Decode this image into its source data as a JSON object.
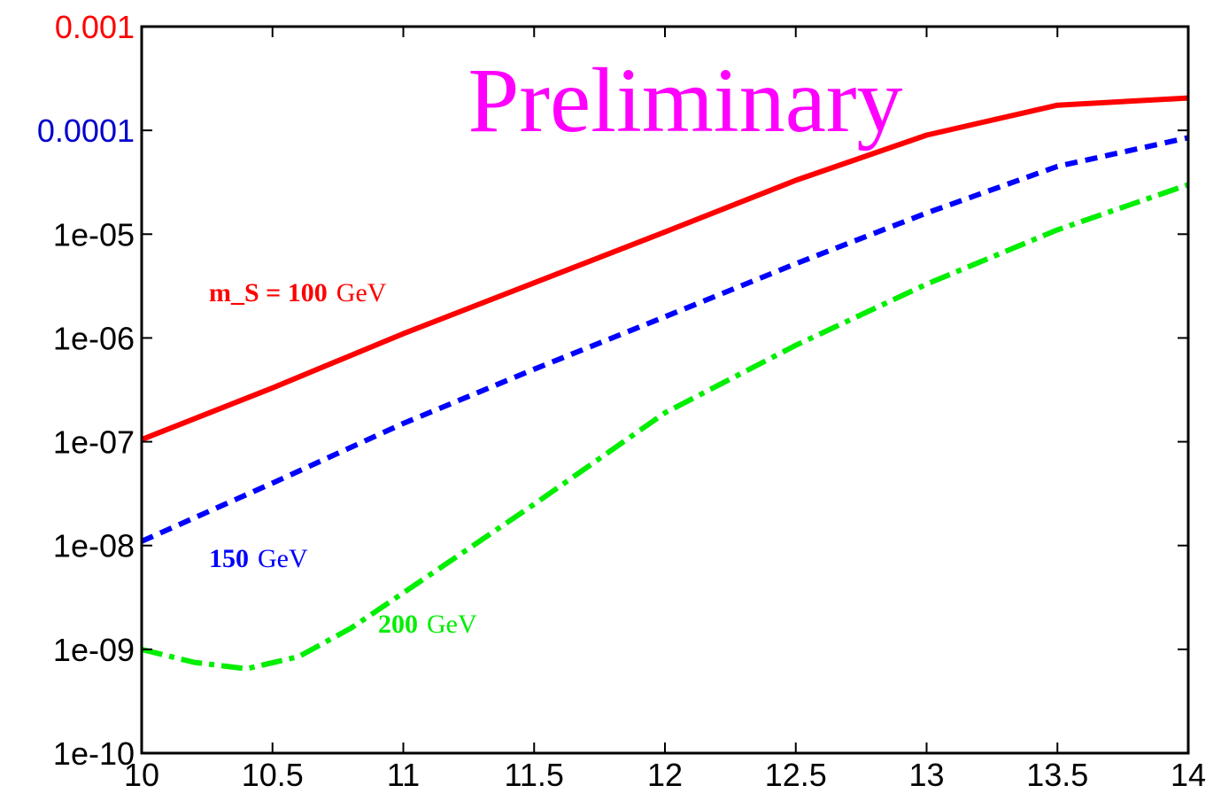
{
  "chart_data": {
    "type": "line",
    "title": "",
    "xlabel": "",
    "ylabel": "",
    "watermark": "Preliminary",
    "watermark_color": "#ff00ff",
    "xlim": [
      10,
      14
    ],
    "ylim": [
      1e-10,
      0.001
    ],
    "yscale": "log",
    "grid": false,
    "x_ticks": [
      "10",
      "10.5",
      "11",
      "11.5",
      "12",
      "12.5",
      "13",
      "13.5",
      "14"
    ],
    "x_tick_values": [
      10,
      10.5,
      11,
      11.5,
      12,
      12.5,
      13,
      13.5,
      14
    ],
    "y_ticks": [
      "1e-10",
      "1e-09",
      "1e-08",
      "1e-07",
      "1e-06",
      "1e-05",
      "0.0001",
      "0.001"
    ],
    "y_tick_values": [
      1e-10,
      1e-09,
      1e-08,
      1e-07,
      1e-06,
      1e-05,
      0.0001,
      0.001
    ],
    "y_tick_colors": [
      "#000000",
      "#000000",
      "#000000",
      "#000000",
      "#000000",
      "#000000",
      "#0000cc",
      "#ff0000"
    ],
    "series": [
      {
        "label_bold": "m_S = 100",
        "label_unit": "GeV",
        "color": "#ff0000",
        "style": "solid",
        "x": [
          10,
          10.5,
          11,
          11.5,
          12,
          12.5,
          13,
          13.5,
          14
        ],
        "y": [
          1.05e-07,
          3.3e-07,
          1.1e-06,
          3.4e-06,
          1.05e-05,
          3.3e-05,
          9e-05,
          0.000175,
          0.000205
        ]
      },
      {
        "label_bold": "150",
        "label_unit": "GeV",
        "color": "#0000ff",
        "style": "dashed",
        "x": [
          10,
          10.5,
          11,
          11.5,
          12,
          12.5,
          13,
          13.5,
          14
        ],
        "y": [
          1.1e-08,
          4e-08,
          1.5e-07,
          5e-07,
          1.6e-06,
          5.2e-06,
          1.6e-05,
          4.5e-05,
          8.5e-05
        ]
      },
      {
        "label_bold": "200",
        "label_unit": "GeV",
        "color": "#00ee00",
        "style": "dashdot",
        "x": [
          10,
          10.2,
          10.4,
          10.6,
          10.8,
          11,
          11.5,
          12,
          12.5,
          13,
          13.5,
          14
        ],
        "y": [
          1e-09,
          7.5e-10,
          6.5e-10,
          8.5e-10,
          1.6e-09,
          3.5e-09,
          2.5e-08,
          1.9e-07,
          8.5e-07,
          3.3e-06,
          1.1e-05,
          3e-05
        ]
      }
    ]
  }
}
